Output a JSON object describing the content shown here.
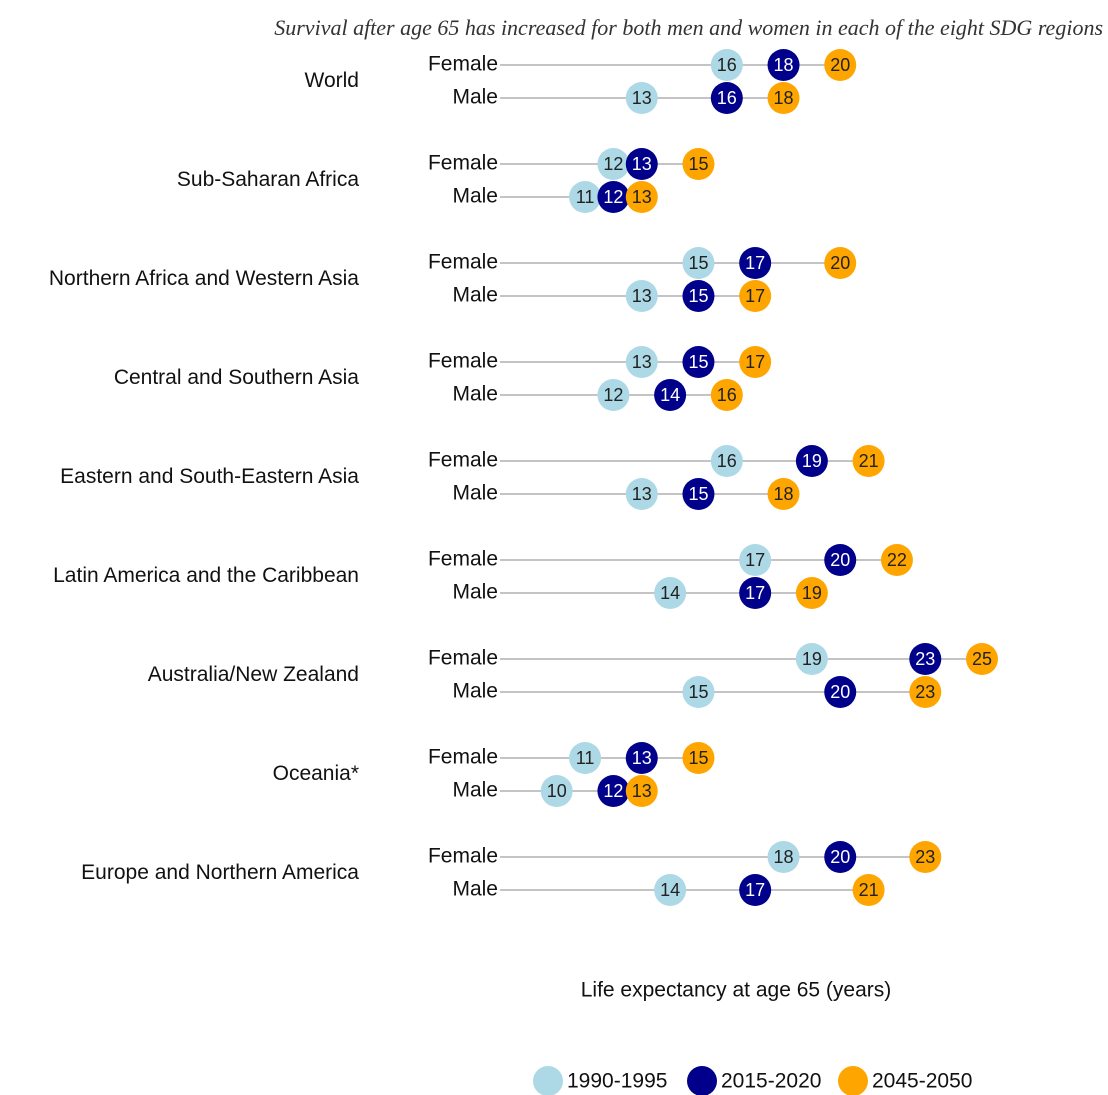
{
  "chart_data": {
    "type": "dot",
    "subtitle": "Survival after age 65 has increased for both men and women in each of the eight SDG regions",
    "x_label": "Life expectancy at age 65 (years)",
    "categories": [
      "World",
      "Sub-Saharan Africa",
      "Northern Africa and Western Asia",
      "Central and Southern Asia",
      "Eastern and South-Eastern Asia",
      "Latin America and the Caribbean",
      "Australia/New Zealand",
      "Oceania*",
      "Europe and Northern America"
    ],
    "sexes": [
      "Female",
      "Male"
    ],
    "series": [
      {
        "name": "1990-1995",
        "color": "#add8e6",
        "values": [
          [
            16,
            13
          ],
          [
            12,
            11
          ],
          [
            15,
            13
          ],
          [
            13,
            12
          ],
          [
            16,
            13
          ],
          [
            17,
            14
          ],
          [
            19,
            15
          ],
          [
            11,
            10
          ],
          [
            18,
            14
          ]
        ]
      },
      {
        "name": "2015-2020",
        "color": "#00008b",
        "values": [
          [
            18,
            16
          ],
          [
            13,
            12
          ],
          [
            17,
            15
          ],
          [
            15,
            14
          ],
          [
            19,
            15
          ],
          [
            20,
            17
          ],
          [
            23,
            20
          ],
          [
            13,
            12
          ],
          [
            20,
            17
          ]
        ]
      },
      {
        "name": "2045-2050",
        "color": "#ffa500",
        "values": [
          [
            20,
            18
          ],
          [
            15,
            13
          ],
          [
            20,
            17
          ],
          [
            17,
            16
          ],
          [
            21,
            18
          ],
          [
            22,
            19
          ],
          [
            25,
            23
          ],
          [
            15,
            13
          ],
          [
            23,
            21
          ]
        ]
      }
    ],
    "xlim": [
      8,
      25
    ],
    "legend": "bottom"
  }
}
